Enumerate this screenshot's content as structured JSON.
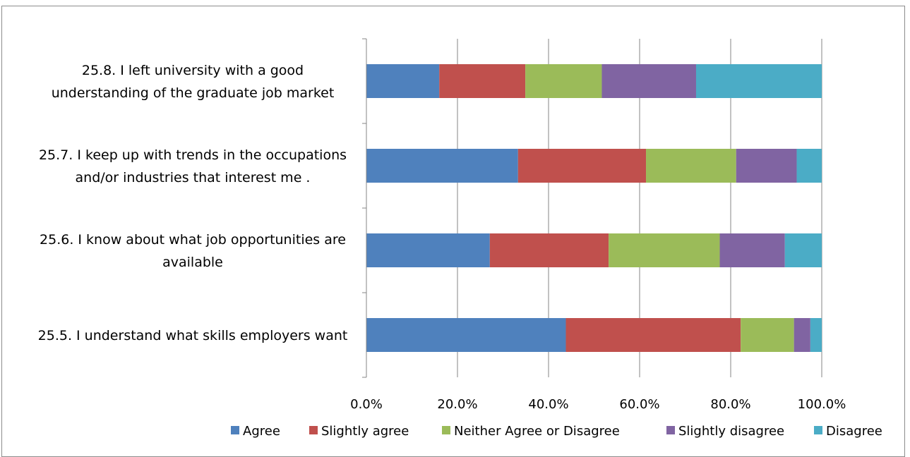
{
  "chart_data": {
    "type": "bar",
    "orientation": "horizontal",
    "stacked": true,
    "percent": true,
    "title": "",
    "xlabel": "",
    "ylabel": "",
    "xlim": [
      0,
      100
    ],
    "x_ticks": [
      "0.0%",
      "20.0%",
      "40.0%",
      "60.0%",
      "80.0%",
      "100.0%"
    ],
    "grid": "vertical",
    "legend_position": "bottom",
    "categories": [
      {
        "lines": [
          "25.8. I left university with a good",
          "understanding of the graduate job market"
        ]
      },
      {
        "lines": [
          "25.7. I keep up with trends in the occupations",
          "and/or industries that interest me ."
        ]
      },
      {
        "lines": [
          "25.6. I know about what job opportunities are",
          "available"
        ]
      },
      {
        "lines": [
          "25.5. I understand what skills employers want"
        ]
      }
    ],
    "series": [
      {
        "name": "Agree",
        "color": "#4f81bd",
        "values": [
          16,
          33.3,
          27.1,
          43.8
        ]
      },
      {
        "name": "Slightly agree",
        "color": "#c0504d",
        "values": [
          18.9,
          28.1,
          26.1,
          38.4
        ]
      },
      {
        "name": "Neither Agree or Disagree",
        "color": "#9bbb59",
        "values": [
          16.8,
          19.8,
          24.4,
          11.7
        ]
      },
      {
        "name": "Slightly disagree",
        "color": "#8064a2",
        "values": [
          20.7,
          13.3,
          14.3,
          3.6
        ]
      },
      {
        "name": "Disagree",
        "color": "#4bacc6",
        "values": [
          27.6,
          5.5,
          8.1,
          2.5
        ]
      }
    ]
  }
}
